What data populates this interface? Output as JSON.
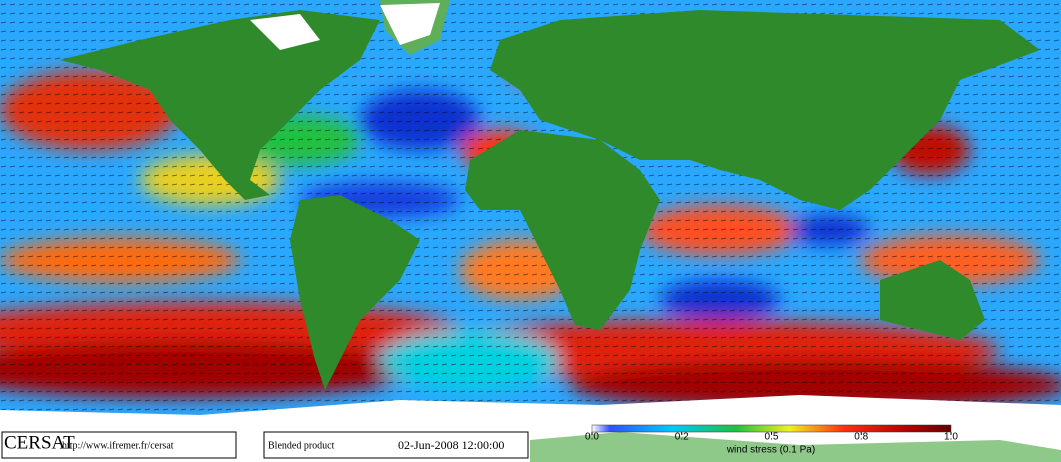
{
  "header": {
    "logo": "CERSAT",
    "url": "http://www.ifremer.fr/cersat",
    "product": "Blended product",
    "date": "02-Jun-2008 12:00:00"
  },
  "colorbar": {
    "label": "wind stress (0.1 Pa)",
    "ticks": [
      {
        "value": 0,
        "label": "0.0"
      },
      {
        "value": 0.2,
        "label": "0.2"
      },
      {
        "value": 0.5,
        "label": "0.5"
      },
      {
        "value": 0.8,
        "label": "0.8"
      },
      {
        "value": 1,
        "label": "1.0"
      }
    ]
  }
}
